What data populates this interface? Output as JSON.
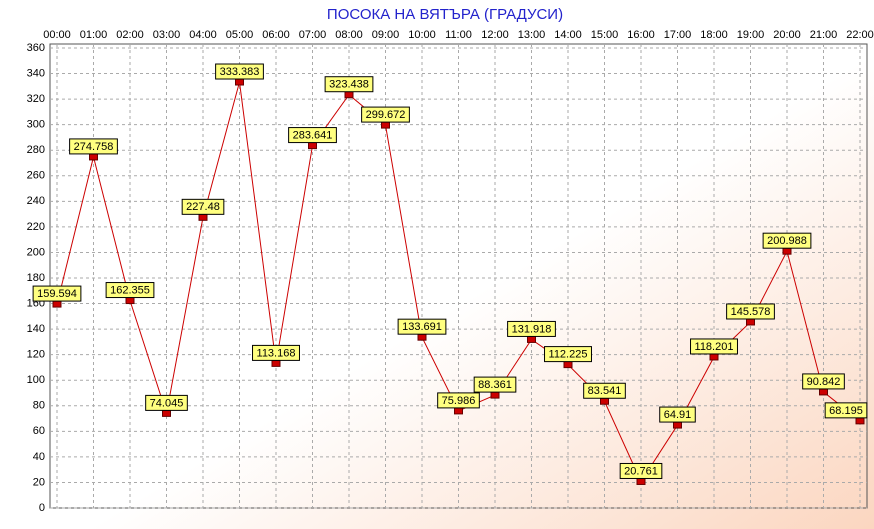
{
  "chart_data": {
    "type": "line",
    "title": "ПОСОКА НА ВЯТЪРА    (ГРАДУСИ)",
    "categories": [
      "00:00",
      "01:00",
      "02:00",
      "03:00",
      "04:00",
      "05:00",
      "06:00",
      "07:00",
      "08:00",
      "09:00",
      "10:00",
      "11:00",
      "12:00",
      "13:00",
      "14:00",
      "15:00",
      "16:00",
      "17:00",
      "18:00",
      "19:00",
      "20:00",
      "21:00",
      "22:00"
    ],
    "values": [
      159.594,
      274.758,
      162.355,
      74.045,
      227.48,
      333.383,
      113.168,
      283.641,
      323.438,
      299.672,
      133.691,
      75.986,
      88.361,
      131.918,
      112.225,
      83.541,
      20.761,
      64.91,
      118.201,
      145.578,
      200.988,
      90.842,
      68.195
    ],
    "color": "#cc0000",
    "ylim": [
      0,
      360
    ],
    "yticks": [
      0,
      20,
      40,
      60,
      80,
      100,
      120,
      140,
      160,
      180,
      200,
      220,
      240,
      260,
      280,
      300,
      320,
      340,
      360
    ],
    "grid": true
  }
}
